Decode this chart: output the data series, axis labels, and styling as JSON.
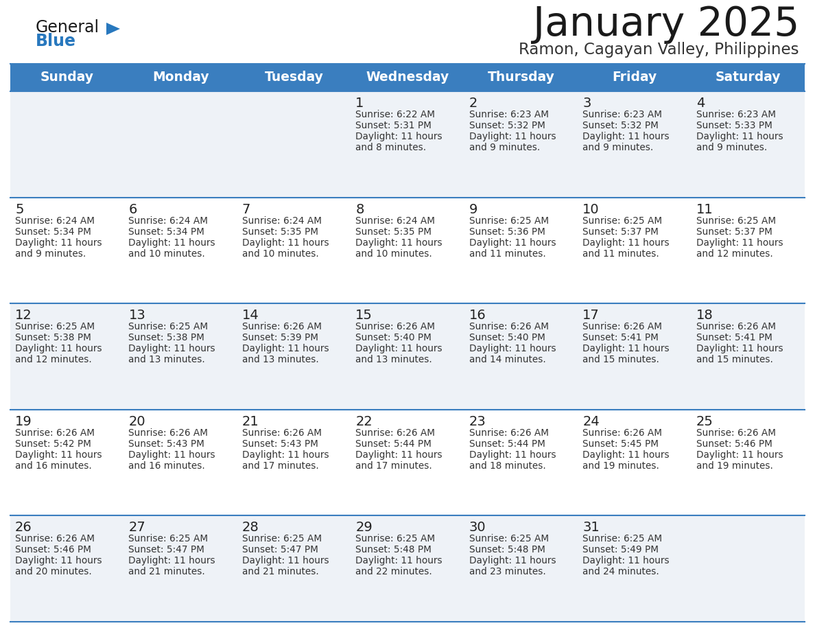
{
  "title": "January 2025",
  "subtitle": "Ramon, Cagayan Valley, Philippines",
  "days_of_week": [
    "Sunday",
    "Monday",
    "Tuesday",
    "Wednesday",
    "Thursday",
    "Friday",
    "Saturday"
  ],
  "header_bg": "#3a7ebf",
  "header_text": "#ffffff",
  "row_bg_light": "#eef2f7",
  "row_bg_white": "#ffffff",
  "cell_border": "#3a7ebf",
  "day_num_color": "#222222",
  "content_color": "#333333",
  "title_color": "#1a1a1a",
  "subtitle_color": "#333333",
  "logo_general_color": "#1a1a1a",
  "logo_blue_color": "#2878be",
  "calendar_data": [
    [
      null,
      null,
      null,
      {
        "day": 1,
        "sunrise": "6:22 AM",
        "sunset": "5:31 PM",
        "daylight": "11 hours and 8 minutes."
      },
      {
        "day": 2,
        "sunrise": "6:23 AM",
        "sunset": "5:32 PM",
        "daylight": "11 hours and 9 minutes."
      },
      {
        "day": 3,
        "sunrise": "6:23 AM",
        "sunset": "5:32 PM",
        "daylight": "11 hours and 9 minutes."
      },
      {
        "day": 4,
        "sunrise": "6:23 AM",
        "sunset": "5:33 PM",
        "daylight": "11 hours and 9 minutes."
      }
    ],
    [
      {
        "day": 5,
        "sunrise": "6:24 AM",
        "sunset": "5:34 PM",
        "daylight": "11 hours and 9 minutes."
      },
      {
        "day": 6,
        "sunrise": "6:24 AM",
        "sunset": "5:34 PM",
        "daylight": "11 hours and 10 minutes."
      },
      {
        "day": 7,
        "sunrise": "6:24 AM",
        "sunset": "5:35 PM",
        "daylight": "11 hours and 10 minutes."
      },
      {
        "day": 8,
        "sunrise": "6:24 AM",
        "sunset": "5:35 PM",
        "daylight": "11 hours and 10 minutes."
      },
      {
        "day": 9,
        "sunrise": "6:25 AM",
        "sunset": "5:36 PM",
        "daylight": "11 hours and 11 minutes."
      },
      {
        "day": 10,
        "sunrise": "6:25 AM",
        "sunset": "5:37 PM",
        "daylight": "11 hours and 11 minutes."
      },
      {
        "day": 11,
        "sunrise": "6:25 AM",
        "sunset": "5:37 PM",
        "daylight": "11 hours and 12 minutes."
      }
    ],
    [
      {
        "day": 12,
        "sunrise": "6:25 AM",
        "sunset": "5:38 PM",
        "daylight": "11 hours and 12 minutes."
      },
      {
        "day": 13,
        "sunrise": "6:25 AM",
        "sunset": "5:38 PM",
        "daylight": "11 hours and 13 minutes."
      },
      {
        "day": 14,
        "sunrise": "6:26 AM",
        "sunset": "5:39 PM",
        "daylight": "11 hours and 13 minutes."
      },
      {
        "day": 15,
        "sunrise": "6:26 AM",
        "sunset": "5:40 PM",
        "daylight": "11 hours and 13 minutes."
      },
      {
        "day": 16,
        "sunrise": "6:26 AM",
        "sunset": "5:40 PM",
        "daylight": "11 hours and 14 minutes."
      },
      {
        "day": 17,
        "sunrise": "6:26 AM",
        "sunset": "5:41 PM",
        "daylight": "11 hours and 15 minutes."
      },
      {
        "day": 18,
        "sunrise": "6:26 AM",
        "sunset": "5:41 PM",
        "daylight": "11 hours and 15 minutes."
      }
    ],
    [
      {
        "day": 19,
        "sunrise": "6:26 AM",
        "sunset": "5:42 PM",
        "daylight": "11 hours and 16 minutes."
      },
      {
        "day": 20,
        "sunrise": "6:26 AM",
        "sunset": "5:43 PM",
        "daylight": "11 hours and 16 minutes."
      },
      {
        "day": 21,
        "sunrise": "6:26 AM",
        "sunset": "5:43 PM",
        "daylight": "11 hours and 17 minutes."
      },
      {
        "day": 22,
        "sunrise": "6:26 AM",
        "sunset": "5:44 PM",
        "daylight": "11 hours and 17 minutes."
      },
      {
        "day": 23,
        "sunrise": "6:26 AM",
        "sunset": "5:44 PM",
        "daylight": "11 hours and 18 minutes."
      },
      {
        "day": 24,
        "sunrise": "6:26 AM",
        "sunset": "5:45 PM",
        "daylight": "11 hours and 19 minutes."
      },
      {
        "day": 25,
        "sunrise": "6:26 AM",
        "sunset": "5:46 PM",
        "daylight": "11 hours and 19 minutes."
      }
    ],
    [
      {
        "day": 26,
        "sunrise": "6:26 AM",
        "sunset": "5:46 PM",
        "daylight": "11 hours and 20 minutes."
      },
      {
        "day": 27,
        "sunrise": "6:25 AM",
        "sunset": "5:47 PM",
        "daylight": "11 hours and 21 minutes."
      },
      {
        "day": 28,
        "sunrise": "6:25 AM",
        "sunset": "5:47 PM",
        "daylight": "11 hours and 21 minutes."
      },
      {
        "day": 29,
        "sunrise": "6:25 AM",
        "sunset": "5:48 PM",
        "daylight": "11 hours and 22 minutes."
      },
      {
        "day": 30,
        "sunrise": "6:25 AM",
        "sunset": "5:48 PM",
        "daylight": "11 hours and 23 minutes."
      },
      {
        "day": 31,
        "sunrise": "6:25 AM",
        "sunset": "5:49 PM",
        "daylight": "11 hours and 24 minutes."
      },
      null
    ]
  ]
}
